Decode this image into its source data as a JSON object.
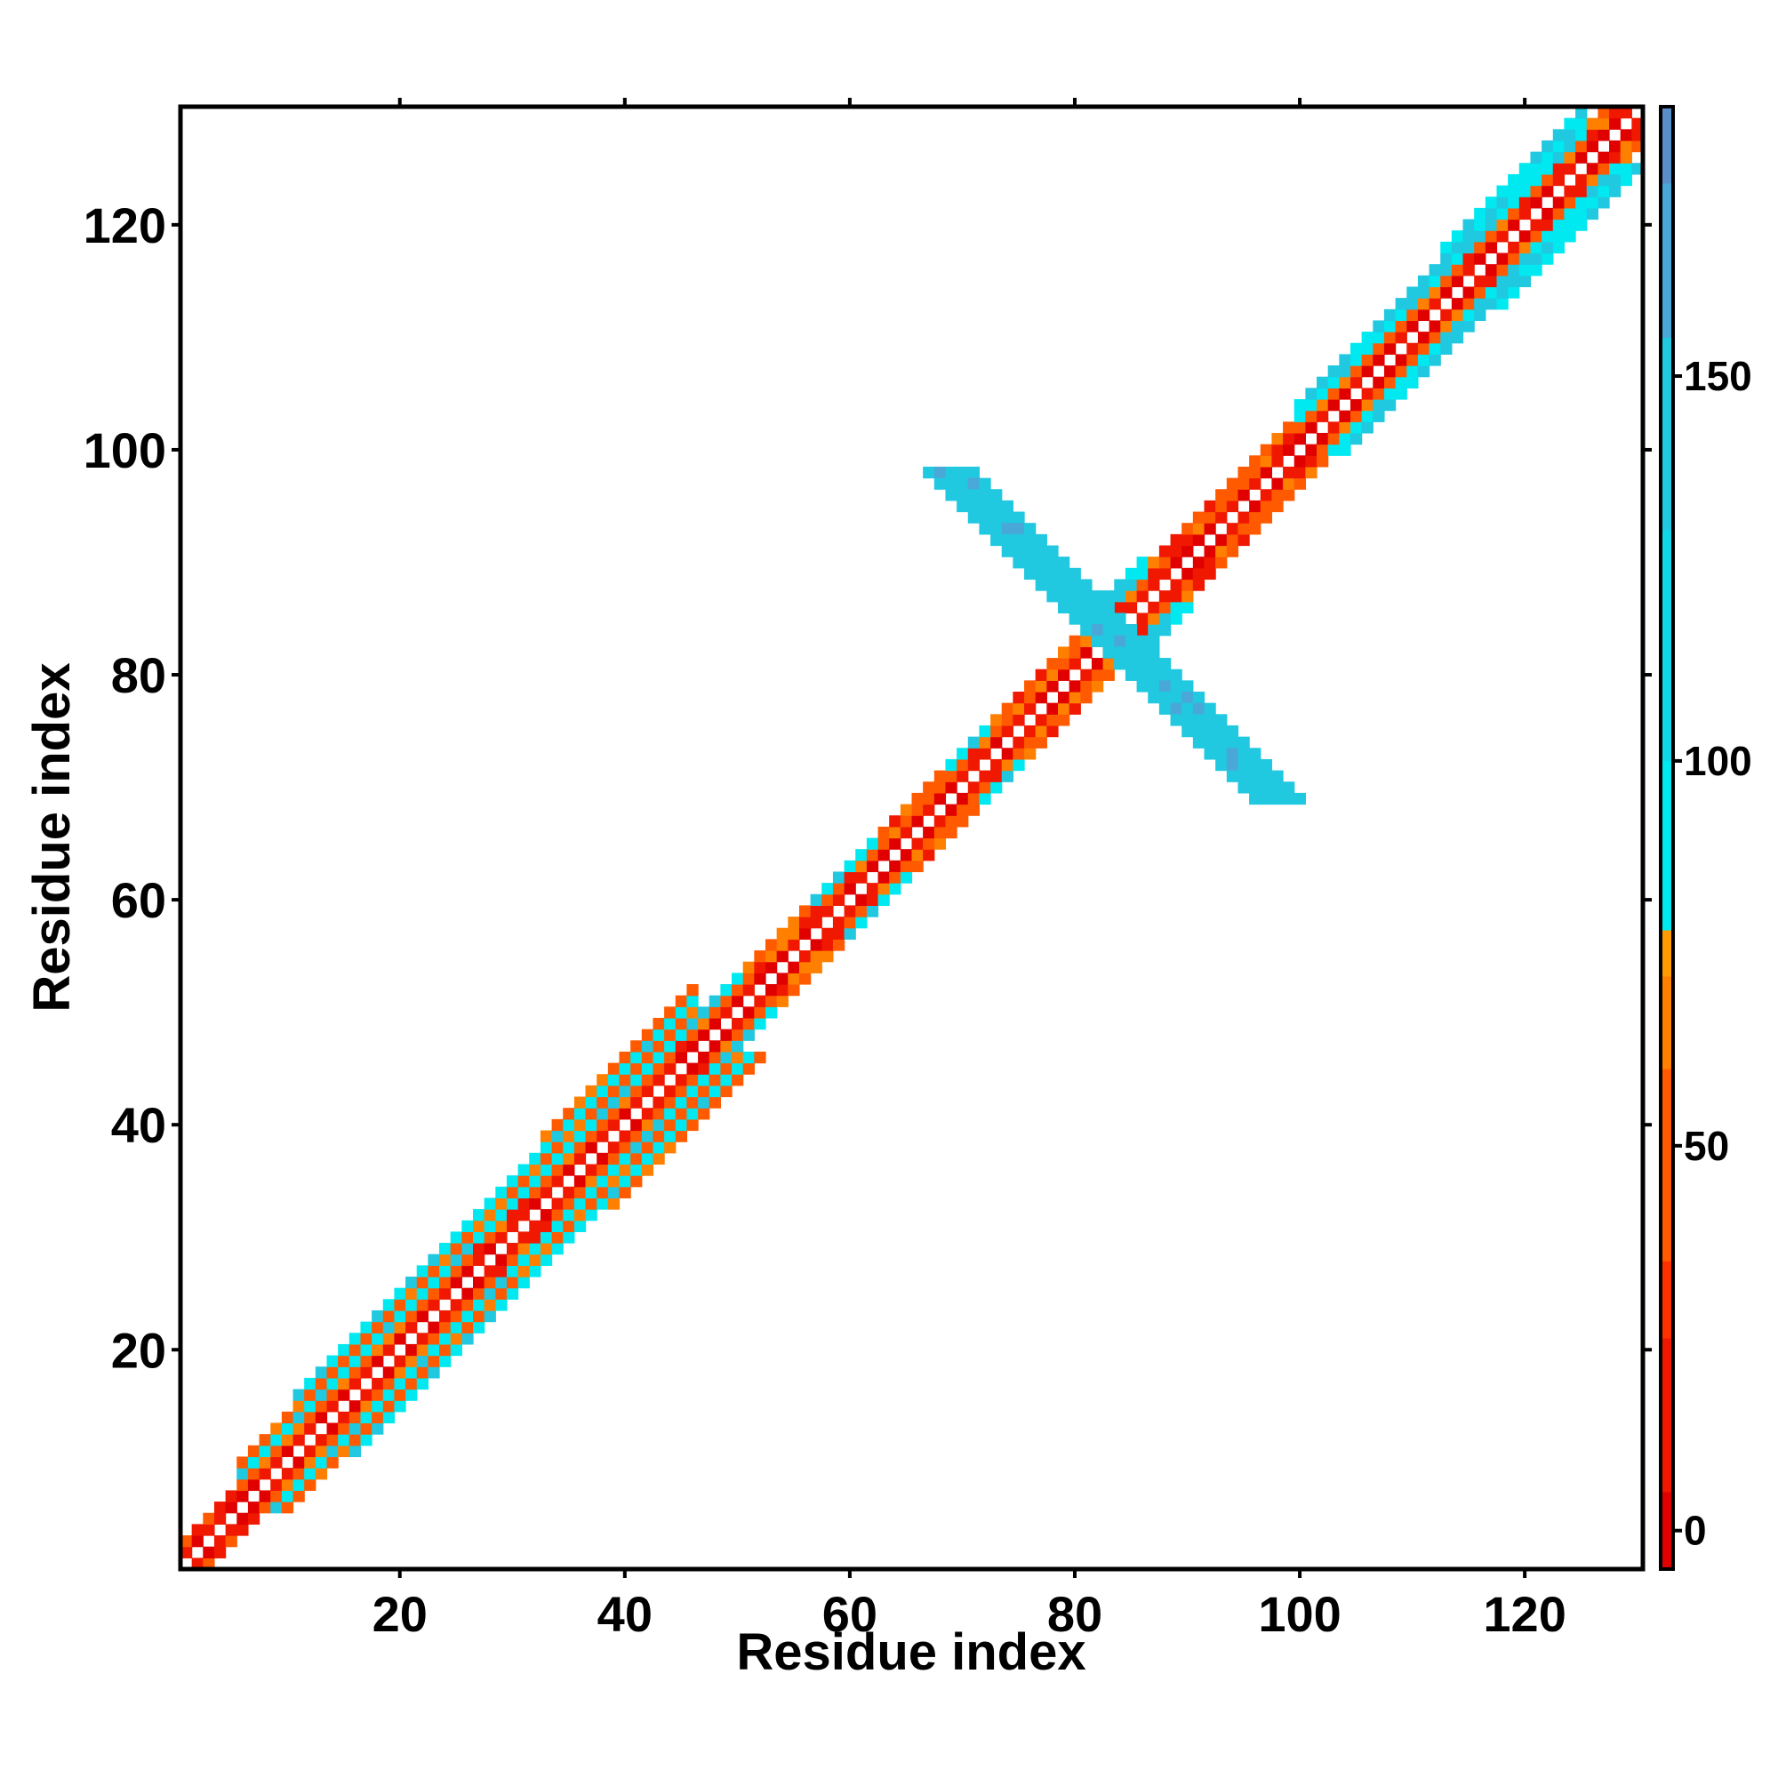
{
  "chart_data": {
    "type": "heatmap",
    "title": "",
    "xlabel": "Residue index",
    "ylabel": "Residue index",
    "xlim": [
      1,
      130
    ],
    "ylim": [
      1,
      130
    ],
    "x_ticks": [
      20,
      40,
      60,
      80,
      100,
      120
    ],
    "y_ticks": [
      20,
      40,
      60,
      80,
      100,
      120
    ],
    "x_tick_labels": [
      "20",
      "40",
      "60",
      "80",
      "100",
      "120"
    ],
    "y_tick_labels": [
      "20",
      "40",
      "60",
      "80",
      "100",
      "120"
    ],
    "grid": false,
    "colorbar": {
      "position": "right",
      "range": [
        -5,
        185
      ],
      "ticks": [
        0,
        50,
        100,
        150
      ],
      "tick_labels": [
        "0",
        "50",
        "100",
        "150"
      ],
      "stops": [
        {
          "value": -5,
          "color": "#e00000"
        },
        {
          "value": 5,
          "color": "#f01800"
        },
        {
          "value": 25,
          "color": "#ff3000"
        },
        {
          "value": 35,
          "color": "#ff5a00"
        },
        {
          "value": 60,
          "color": "#ff8000"
        },
        {
          "value": 72,
          "color": "#ff9a00"
        },
        {
          "value": 78,
          "color": "#00e8f0"
        },
        {
          "value": 100,
          "color": "#10d8e8"
        },
        {
          "value": 130,
          "color": "#20c8e0"
        },
        {
          "value": 155,
          "color": "#4aa8d8"
        },
        {
          "value": 175,
          "color": "#5a8ec8"
        },
        {
          "value": 185,
          "color": "#ffffff"
        }
      ]
    },
    "diagonal_bands": [
      {
        "start": 1,
        "end": 5,
        "halfwidth": 2,
        "region": "edge"
      },
      {
        "start": 5,
        "end": 10,
        "halfwidth": 4,
        "region": "sheet"
      },
      {
        "start": 10,
        "end": 32,
        "halfwidth": 5,
        "region": "sheet"
      },
      {
        "start": 32,
        "end": 46,
        "halfwidth": 6,
        "region": "sheet"
      },
      {
        "start": 46,
        "end": 50,
        "halfwidth": 3,
        "region": "mixed"
      },
      {
        "start": 50,
        "end": 56,
        "halfwidth": 3,
        "region": "helix"
      },
      {
        "start": 56,
        "end": 62,
        "halfwidth": 3,
        "region": "mixed"
      },
      {
        "start": 62,
        "end": 68,
        "halfwidth": 3,
        "region": "helix"
      },
      {
        "start": 68,
        "end": 72,
        "halfwidth": 3,
        "region": "mixed"
      },
      {
        "start": 72,
        "end": 80,
        "halfwidth": 3,
        "region": "helix"
      },
      {
        "start": 80,
        "end": 86,
        "halfwidth": 4,
        "region": "mixed"
      },
      {
        "start": 86,
        "end": 99,
        "halfwidth": 3,
        "region": "helix"
      },
      {
        "start": 99,
        "end": 102,
        "halfwidth": 4,
        "region": "mixed"
      },
      {
        "start": 102,
        "end": 112,
        "halfwidth": 4,
        "region": "mixed"
      },
      {
        "start": 112,
        "end": 125,
        "halfwidth": 5,
        "region": "mixed"
      },
      {
        "start": 125,
        "end": 130,
        "halfwidth": 3,
        "region": "helix"
      }
    ],
    "off_diagonal_strands": [
      {
        "from": [
          69,
          98
        ],
        "to": [
          98,
          69
        ],
        "halfwidth": 2,
        "value": 150
      }
    ]
  }
}
